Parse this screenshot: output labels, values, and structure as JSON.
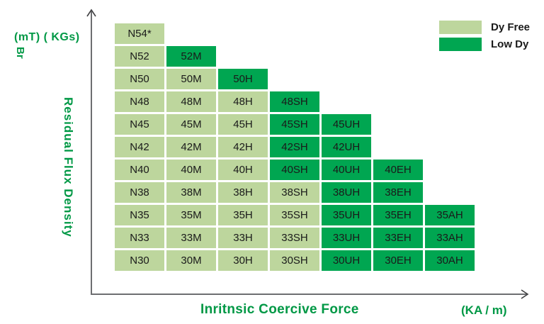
{
  "colors": {
    "dy_free": "#BDD69D",
    "low_dy": "#00A651",
    "text_green": "#009845",
    "axis_line": "#6D6E71",
    "arrow_head": "#3F3F41",
    "cell_text": "#1A1A1A"
  },
  "chart_data": {
    "type": "table",
    "x_axis": {
      "title": "Inritnsic Coercive Force",
      "unit": "(KA / m)"
    },
    "y_axis": {
      "title": "Residual Flux Density",
      "symbol": "Br",
      "unit": "(mT) ( KGs)"
    },
    "legend": [
      {
        "label": "Dy Free",
        "key": "free",
        "color": "#BDD69D"
      },
      {
        "label": "Low Dy",
        "key": "low",
        "color": "#00A651"
      }
    ],
    "rows": [
      [
        {
          "label": "N54*",
          "dy": "free"
        }
      ],
      [
        {
          "label": "N52",
          "dy": "free"
        },
        {
          "label": "52M",
          "dy": "low"
        }
      ],
      [
        {
          "label": "N50",
          "dy": "free"
        },
        {
          "label": "50M",
          "dy": "free"
        },
        {
          "label": "50H",
          "dy": "low"
        }
      ],
      [
        {
          "label": "N48",
          "dy": "free"
        },
        {
          "label": "48M",
          "dy": "free"
        },
        {
          "label": "48H",
          "dy": "free"
        },
        {
          "label": "48SH",
          "dy": "low"
        }
      ],
      [
        {
          "label": "N45",
          "dy": "free"
        },
        {
          "label": "45M",
          "dy": "free"
        },
        {
          "label": "45H",
          "dy": "free"
        },
        {
          "label": "45SH",
          "dy": "low"
        },
        {
          "label": "45UH",
          "dy": "low"
        }
      ],
      [
        {
          "label": "N42",
          "dy": "free"
        },
        {
          "label": "42M",
          "dy": "free"
        },
        {
          "label": "42H",
          "dy": "free"
        },
        {
          "label": "42SH",
          "dy": "low"
        },
        {
          "label": "42UH",
          "dy": "low"
        }
      ],
      [
        {
          "label": "N40",
          "dy": "free"
        },
        {
          "label": "40M",
          "dy": "free"
        },
        {
          "label": "40H",
          "dy": "free"
        },
        {
          "label": "40SH",
          "dy": "low"
        },
        {
          "label": "40UH",
          "dy": "low"
        },
        {
          "label": "40EH",
          "dy": "low"
        }
      ],
      [
        {
          "label": "N38",
          "dy": "free"
        },
        {
          "label": "38M",
          "dy": "free"
        },
        {
          "label": "38H",
          "dy": "free"
        },
        {
          "label": "38SH",
          "dy": "free"
        },
        {
          "label": "38UH",
          "dy": "low"
        },
        {
          "label": "38EH",
          "dy": "low"
        }
      ],
      [
        {
          "label": "N35",
          "dy": "free"
        },
        {
          "label": "35M",
          "dy": "free"
        },
        {
          "label": "35H",
          "dy": "free"
        },
        {
          "label": "35SH",
          "dy": "free"
        },
        {
          "label": "35UH",
          "dy": "low"
        },
        {
          "label": "35EH",
          "dy": "low"
        },
        {
          "label": "35AH",
          "dy": "low"
        }
      ],
      [
        {
          "label": "N33",
          "dy": "free"
        },
        {
          "label": "33M",
          "dy": "free"
        },
        {
          "label": "33H",
          "dy": "free"
        },
        {
          "label": "33SH",
          "dy": "free"
        },
        {
          "label": "33UH",
          "dy": "low"
        },
        {
          "label": "33EH",
          "dy": "low"
        },
        {
          "label": "33AH",
          "dy": "low"
        }
      ],
      [
        {
          "label": "N30",
          "dy": "free"
        },
        {
          "label": "30M",
          "dy": "free"
        },
        {
          "label": "30H",
          "dy": "free"
        },
        {
          "label": "30SH",
          "dy": "free"
        },
        {
          "label": "30UH",
          "dy": "low"
        },
        {
          "label": "30EH",
          "dy": "low"
        },
        {
          "label": "30AH",
          "dy": "low"
        }
      ]
    ]
  }
}
